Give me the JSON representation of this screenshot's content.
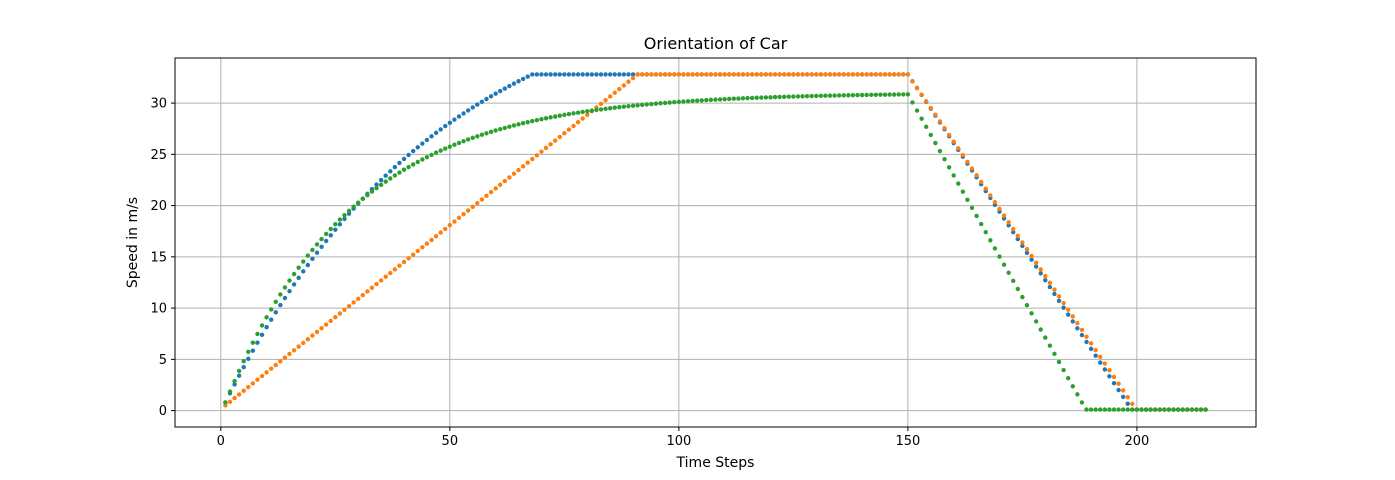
{
  "chart_data": {
    "type": "scatter",
    "title": "Orientation of Car",
    "xlabel": "Time Steps",
    "ylabel": "Speed in m/s",
    "xlim": [
      -10,
      226
    ],
    "ylim": [
      -1.6,
      34.4
    ],
    "xticks": [
      0,
      50,
      100,
      150,
      200
    ],
    "yticks": [
      0,
      5,
      10,
      15,
      20,
      25,
      30
    ],
    "grid": true,
    "colors": [
      "#1f77b4",
      "#ff7f0e",
      "#2ca02c"
    ],
    "series": [
      {
        "profile": "accel_exp_then_linear",
        "points_start": 1,
        "points_end": 215,
        "v0": 0.8,
        "vmax": 32.8,
        "tau": 47.0,
        "reach_step": 68,
        "decel_start": 150,
        "zero_step": 199
      },
      {
        "profile": "linear",
        "points_start": 1,
        "points_end": 215,
        "v0": 0.5,
        "vmax": 32.8,
        "reach_step": 91,
        "decel_start": 150,
        "zero_step": 200
      },
      {
        "profile": "exponential",
        "points_start": 1,
        "points_end": 215,
        "v0": 0.8,
        "vmax": 31.0,
        "tau": 28.0,
        "end_value": 30.5,
        "decel_start": 150,
        "zero_step": 189
      }
    ]
  }
}
